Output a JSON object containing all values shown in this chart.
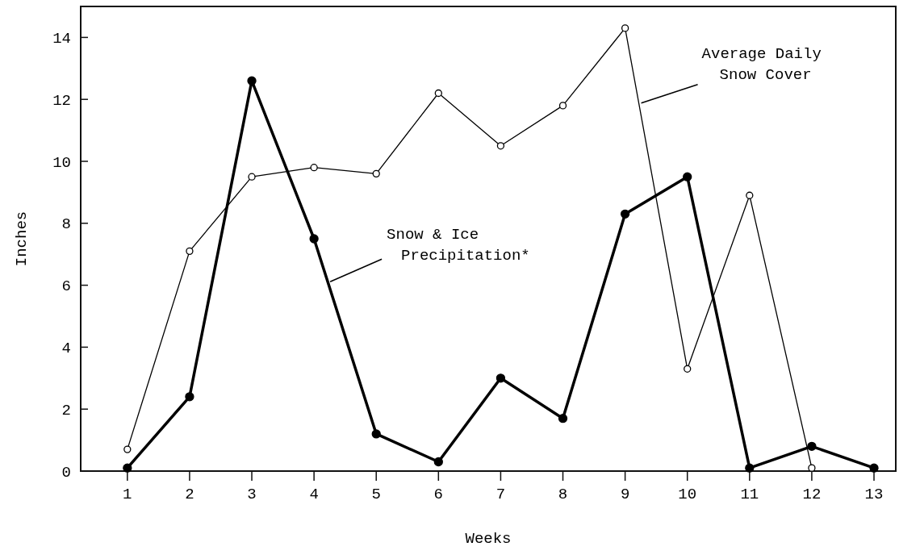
{
  "chart_data": {
    "type": "line",
    "xlabel": "Weeks",
    "ylabel": "Inches",
    "x": [
      1,
      2,
      3,
      4,
      5,
      6,
      7,
      8,
      9,
      10,
      11,
      12,
      13
    ],
    "xlim": [
      0.25,
      13.35
    ],
    "xticks": [
      1,
      2,
      3,
      4,
      5,
      6,
      7,
      8,
      9,
      10,
      11,
      12,
      13
    ],
    "ylim": [
      0,
      15
    ],
    "yticks": [
      0,
      2,
      4,
      6,
      8,
      10,
      12,
      14
    ],
    "grid": false,
    "marker": "circle",
    "line_style": "solid",
    "series": [
      {
        "name": "Average Daily Snow Cover",
        "color": "#000000",
        "values": [
          0.7,
          7.1,
          9.5,
          9.8,
          9.6,
          12.2,
          10.5,
          11.8,
          14.3,
          3.3,
          8.9,
          0.1,
          null
        ]
      },
      {
        "name": "Snow & Ice Precipitation*",
        "color": "#000000",
        "values": [
          0.1,
          2.4,
          12.6,
          7.5,
          1.2,
          0.3,
          3.0,
          1.7,
          8.3,
          9.5,
          0.1,
          0.8,
          0.1
        ]
      }
    ]
  }
}
